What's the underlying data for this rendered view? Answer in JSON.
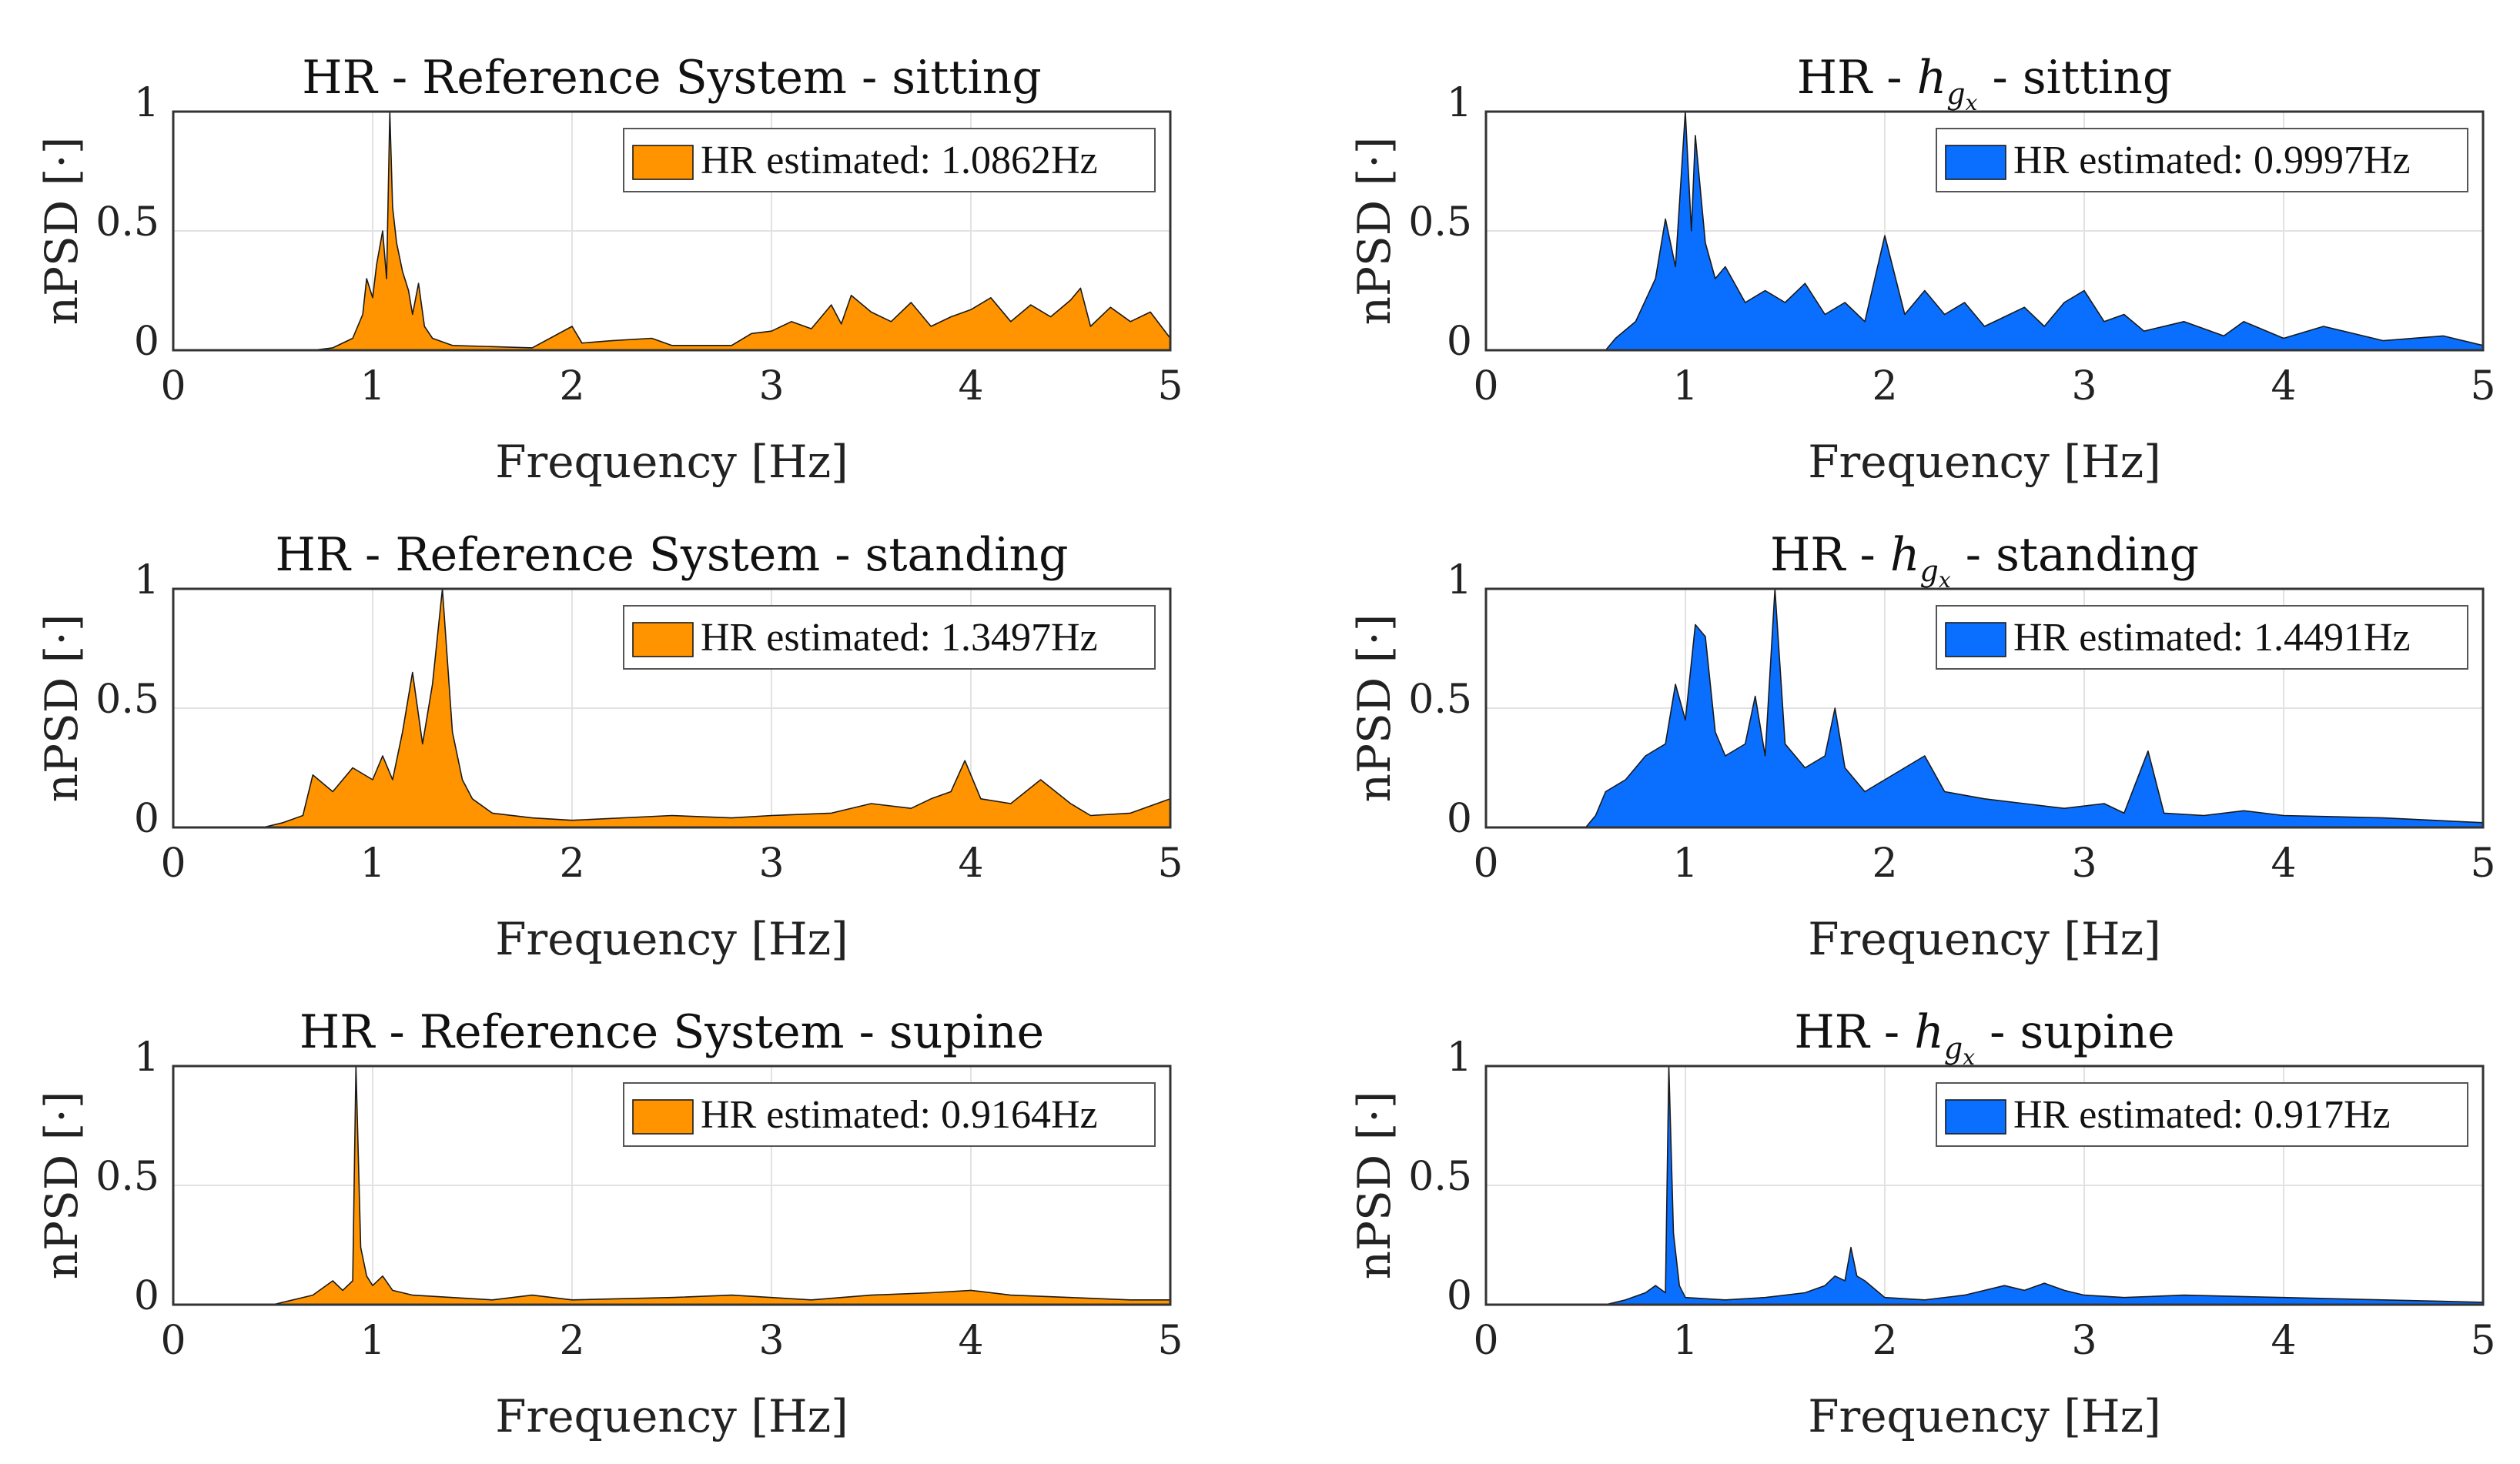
{
  "chart_data": [
    {
      "type": "area",
      "title": "HR - Reference System - sitting",
      "xlabel": "Frequency [Hz]",
      "ylabel": "nPSD [·]",
      "xlim": [
        0,
        5
      ],
      "ylim": [
        0,
        1
      ],
      "xticks": [
        "0",
        "1",
        "2",
        "3",
        "4",
        "5"
      ],
      "yticks": [
        "0",
        "0.5",
        "1"
      ],
      "grid": true,
      "legend_position": "top-right",
      "color": "#ff9400",
      "series": [
        {
          "name": "HR estimated: 1.0862Hz",
          "points": [
            [
              0,
              0
            ],
            [
              0.7,
              0
            ],
            [
              0.8,
              0.01
            ],
            [
              0.9,
              0.05
            ],
            [
              0.95,
              0.15
            ],
            [
              0.97,
              0.3
            ],
            [
              1.0,
              0.22
            ],
            [
              1.02,
              0.36
            ],
            [
              1.05,
              0.5
            ],
            [
              1.07,
              0.3
            ],
            [
              1.0862,
              1.0
            ],
            [
              1.1,
              0.6
            ],
            [
              1.12,
              0.45
            ],
            [
              1.15,
              0.33
            ],
            [
              1.18,
              0.25
            ],
            [
              1.2,
              0.15
            ],
            [
              1.23,
              0.28
            ],
            [
              1.26,
              0.1
            ],
            [
              1.3,
              0.05
            ],
            [
              1.4,
              0.02
            ],
            [
              1.8,
              0.01
            ],
            [
              2.0,
              0.1
            ],
            [
              2.05,
              0.03
            ],
            [
              2.2,
              0.04
            ],
            [
              2.4,
              0.05
            ],
            [
              2.5,
              0.02
            ],
            [
              2.8,
              0.02
            ],
            [
              2.9,
              0.07
            ],
            [
              3.0,
              0.08
            ],
            [
              3.1,
              0.12
            ],
            [
              3.2,
              0.09
            ],
            [
              3.3,
              0.19
            ],
            [
              3.35,
              0.11
            ],
            [
              3.4,
              0.23
            ],
            [
              3.5,
              0.16
            ],
            [
              3.6,
              0.12
            ],
            [
              3.7,
              0.2
            ],
            [
              3.8,
              0.1
            ],
            [
              3.9,
              0.14
            ],
            [
              4.0,
              0.17
            ],
            [
              4.1,
              0.22
            ],
            [
              4.2,
              0.12
            ],
            [
              4.3,
              0.19
            ],
            [
              4.4,
              0.14
            ],
            [
              4.5,
              0.21
            ],
            [
              4.55,
              0.26
            ],
            [
              4.6,
              0.1
            ],
            [
              4.7,
              0.18
            ],
            [
              4.8,
              0.12
            ],
            [
              4.9,
              0.16
            ],
            [
              5.0,
              0.05
            ]
          ]
        }
      ]
    },
    {
      "type": "area",
      "title": "HR - h_gx - sitting",
      "xlabel": "Frequency [Hz]",
      "ylabel": "nPSD [·]",
      "xlim": [
        0,
        5
      ],
      "ylim": [
        0,
        1
      ],
      "xticks": [
        "0",
        "1",
        "2",
        "3",
        "4",
        "5"
      ],
      "yticks": [
        "0",
        "0.5",
        "1"
      ],
      "grid": true,
      "legend_position": "top-right",
      "color": "#0a6fff",
      "series": [
        {
          "name": "HR estimated: 0.9997Hz",
          "points": [
            [
              0,
              0
            ],
            [
              0.6,
              0
            ],
            [
              0.65,
              0.05
            ],
            [
              0.75,
              0.12
            ],
            [
              0.85,
              0.3
            ],
            [
              0.9,
              0.55
            ],
            [
              0.95,
              0.35
            ],
            [
              0.9997,
              1.0
            ],
            [
              1.03,
              0.5
            ],
            [
              1.05,
              0.9
            ],
            [
              1.1,
              0.45
            ],
            [
              1.15,
              0.3
            ],
            [
              1.2,
              0.35
            ],
            [
              1.3,
              0.2
            ],
            [
              1.4,
              0.25
            ],
            [
              1.5,
              0.2
            ],
            [
              1.6,
              0.28
            ],
            [
              1.7,
              0.15
            ],
            [
              1.8,
              0.2
            ],
            [
              1.9,
              0.12
            ],
            [
              2.0,
              0.48
            ],
            [
              2.1,
              0.15
            ],
            [
              2.2,
              0.25
            ],
            [
              2.3,
              0.15
            ],
            [
              2.4,
              0.2
            ],
            [
              2.5,
              0.1
            ],
            [
              2.6,
              0.14
            ],
            [
              2.7,
              0.18
            ],
            [
              2.8,
              0.1
            ],
            [
              2.9,
              0.2
            ],
            [
              3.0,
              0.25
            ],
            [
              3.1,
              0.12
            ],
            [
              3.2,
              0.15
            ],
            [
              3.3,
              0.08
            ],
            [
              3.5,
              0.12
            ],
            [
              3.7,
              0.06
            ],
            [
              3.8,
              0.12
            ],
            [
              4.0,
              0.05
            ],
            [
              4.2,
              0.1
            ],
            [
              4.5,
              0.04
            ],
            [
              4.8,
              0.06
            ],
            [
              5.0,
              0.02
            ]
          ]
        }
      ]
    },
    {
      "type": "area",
      "title": "HR - Reference System - standing",
      "xlabel": "Frequency [Hz]",
      "ylabel": "nPSD [·]",
      "xlim": [
        0,
        5
      ],
      "ylim": [
        0,
        1
      ],
      "xticks": [
        "0",
        "1",
        "2",
        "3",
        "4",
        "5"
      ],
      "yticks": [
        "0",
        "0.5",
        "1"
      ],
      "grid": true,
      "legend_position": "top-right",
      "color": "#ff9400",
      "series": [
        {
          "name": "HR estimated: 1.3497Hz",
          "points": [
            [
              0,
              0
            ],
            [
              0.45,
              0
            ],
            [
              0.55,
              0.02
            ],
            [
              0.65,
              0.05
            ],
            [
              0.7,
              0.22
            ],
            [
              0.8,
              0.15
            ],
            [
              0.9,
              0.25
            ],
            [
              1.0,
              0.2
            ],
            [
              1.05,
              0.3
            ],
            [
              1.1,
              0.2
            ],
            [
              1.15,
              0.4
            ],
            [
              1.2,
              0.65
            ],
            [
              1.25,
              0.35
            ],
            [
              1.3,
              0.6
            ],
            [
              1.3497,
              1.0
            ],
            [
              1.4,
              0.4
            ],
            [
              1.45,
              0.2
            ],
            [
              1.5,
              0.12
            ],
            [
              1.6,
              0.06
            ],
            [
              1.8,
              0.04
            ],
            [
              2.0,
              0.03
            ],
            [
              2.5,
              0.05
            ],
            [
              2.8,
              0.04
            ],
            [
              3.0,
              0.05
            ],
            [
              3.3,
              0.06
            ],
            [
              3.5,
              0.1
            ],
            [
              3.7,
              0.08
            ],
            [
              3.8,
              0.12
            ],
            [
              3.9,
              0.15
            ],
            [
              3.97,
              0.28
            ],
            [
              4.05,
              0.12
            ],
            [
              4.2,
              0.1
            ],
            [
              4.35,
              0.2
            ],
            [
              4.5,
              0.1
            ],
            [
              4.6,
              0.05
            ],
            [
              4.8,
              0.06
            ],
            [
              5.0,
              0.12
            ]
          ]
        }
      ]
    },
    {
      "type": "area",
      "title": "HR - h_gx - standing",
      "xlabel": "Frequency [Hz]",
      "ylabel": "nPSD [·]",
      "xlim": [
        0,
        5
      ],
      "ylim": [
        0,
        1
      ],
      "xticks": [
        "0",
        "1",
        "2",
        "3",
        "4",
        "5"
      ],
      "yticks": [
        "0",
        "0.5",
        "1"
      ],
      "grid": true,
      "legend_position": "top-right",
      "color": "#0a6fff",
      "series": [
        {
          "name": "HR estimated: 1.4491Hz",
          "points": [
            [
              0,
              0
            ],
            [
              0.5,
              0
            ],
            [
              0.55,
              0.05
            ],
            [
              0.6,
              0.15
            ],
            [
              0.7,
              0.2
            ],
            [
              0.8,
              0.3
            ],
            [
              0.9,
              0.35
            ],
            [
              0.95,
              0.6
            ],
            [
              1.0,
              0.45
            ],
            [
              1.05,
              0.85
            ],
            [
              1.1,
              0.8
            ],
            [
              1.15,
              0.4
            ],
            [
              1.2,
              0.3
            ],
            [
              1.3,
              0.35
            ],
            [
              1.35,
              0.55
            ],
            [
              1.4,
              0.3
            ],
            [
              1.4491,
              1.0
            ],
            [
              1.5,
              0.35
            ],
            [
              1.6,
              0.25
            ],
            [
              1.7,
              0.3
            ],
            [
              1.75,
              0.5
            ],
            [
              1.8,
              0.25
            ],
            [
              1.9,
              0.15
            ],
            [
              2.0,
              0.2
            ],
            [
              2.2,
              0.3
            ],
            [
              2.3,
              0.15
            ],
            [
              2.5,
              0.12
            ],
            [
              2.7,
              0.1
            ],
            [
              2.9,
              0.08
            ],
            [
              3.1,
              0.1
            ],
            [
              3.2,
              0.06
            ],
            [
              3.32,
              0.32
            ],
            [
              3.4,
              0.06
            ],
            [
              3.6,
              0.05
            ],
            [
              3.8,
              0.07
            ],
            [
              4.0,
              0.05
            ],
            [
              4.5,
              0.04
            ],
            [
              5.0,
              0.02
            ]
          ]
        }
      ]
    },
    {
      "type": "area",
      "title": "HR - Reference System - supine",
      "xlabel": "Frequency [Hz]",
      "ylabel": "nPSD [·]",
      "xlim": [
        0,
        5
      ],
      "ylim": [
        0,
        1
      ],
      "xticks": [
        "0",
        "1",
        "2",
        "3",
        "4",
        "5"
      ],
      "yticks": [
        "0",
        "0.5",
        "1"
      ],
      "grid": true,
      "legend_position": "top-right",
      "color": "#ff9400",
      "series": [
        {
          "name": "HR estimated: 0.9164Hz",
          "points": [
            [
              0,
              0
            ],
            [
              0.5,
              0
            ],
            [
              0.6,
              0.02
            ],
            [
              0.7,
              0.04
            ],
            [
              0.8,
              0.1
            ],
            [
              0.85,
              0.06
            ],
            [
              0.9,
              0.1
            ],
            [
              0.9164,
              1.0
            ],
            [
              0.94,
              0.24
            ],
            [
              0.97,
              0.12
            ],
            [
              1.0,
              0.08
            ],
            [
              1.05,
              0.12
            ],
            [
              1.1,
              0.06
            ],
            [
              1.2,
              0.04
            ],
            [
              1.4,
              0.03
            ],
            [
              1.6,
              0.02
            ],
            [
              1.8,
              0.04
            ],
            [
              2.0,
              0.02
            ],
            [
              2.5,
              0.03
            ],
            [
              2.8,
              0.04
            ],
            [
              3.0,
              0.03
            ],
            [
              3.2,
              0.02
            ],
            [
              3.5,
              0.04
            ],
            [
              3.8,
              0.05
            ],
            [
              4.0,
              0.06
            ],
            [
              4.2,
              0.04
            ],
            [
              4.5,
              0.03
            ],
            [
              4.8,
              0.02
            ],
            [
              5.0,
              0.02
            ]
          ]
        }
      ]
    },
    {
      "type": "area",
      "title": "HR - h_gx - supine",
      "xlabel": "Frequency [Hz]",
      "ylabel": "nPSD [·]",
      "xlim": [
        0,
        5
      ],
      "ylim": [
        0,
        1
      ],
      "xticks": [
        "0",
        "1",
        "2",
        "3",
        "4",
        "5"
      ],
      "yticks": [
        "0",
        "0.5",
        "1"
      ],
      "grid": true,
      "legend_position": "top-right",
      "color": "#0a6fff",
      "series": [
        {
          "name": "HR estimated: 0.917Hz",
          "points": [
            [
              0,
              0
            ],
            [
              0.6,
              0
            ],
            [
              0.7,
              0.02
            ],
            [
              0.8,
              0.05
            ],
            [
              0.85,
              0.08
            ],
            [
              0.9,
              0.05
            ],
            [
              0.917,
              1.0
            ],
            [
              0.94,
              0.3
            ],
            [
              0.97,
              0.08
            ],
            [
              1.0,
              0.03
            ],
            [
              1.2,
              0.02
            ],
            [
              1.4,
              0.03
            ],
            [
              1.6,
              0.05
            ],
            [
              1.7,
              0.08
            ],
            [
              1.75,
              0.12
            ],
            [
              1.8,
              0.1
            ],
            [
              1.83,
              0.24
            ],
            [
              1.86,
              0.12
            ],
            [
              1.9,
              0.1
            ],
            [
              2.0,
              0.03
            ],
            [
              2.2,
              0.02
            ],
            [
              2.4,
              0.04
            ],
            [
              2.6,
              0.08
            ],
            [
              2.7,
              0.06
            ],
            [
              2.8,
              0.09
            ],
            [
              2.9,
              0.06
            ],
            [
              3.0,
              0.04
            ],
            [
              3.2,
              0.03
            ],
            [
              3.5,
              0.04
            ],
            [
              4.0,
              0.03
            ],
            [
              4.5,
              0.02
            ],
            [
              5.0,
              0.01
            ]
          ]
        }
      ]
    }
  ]
}
